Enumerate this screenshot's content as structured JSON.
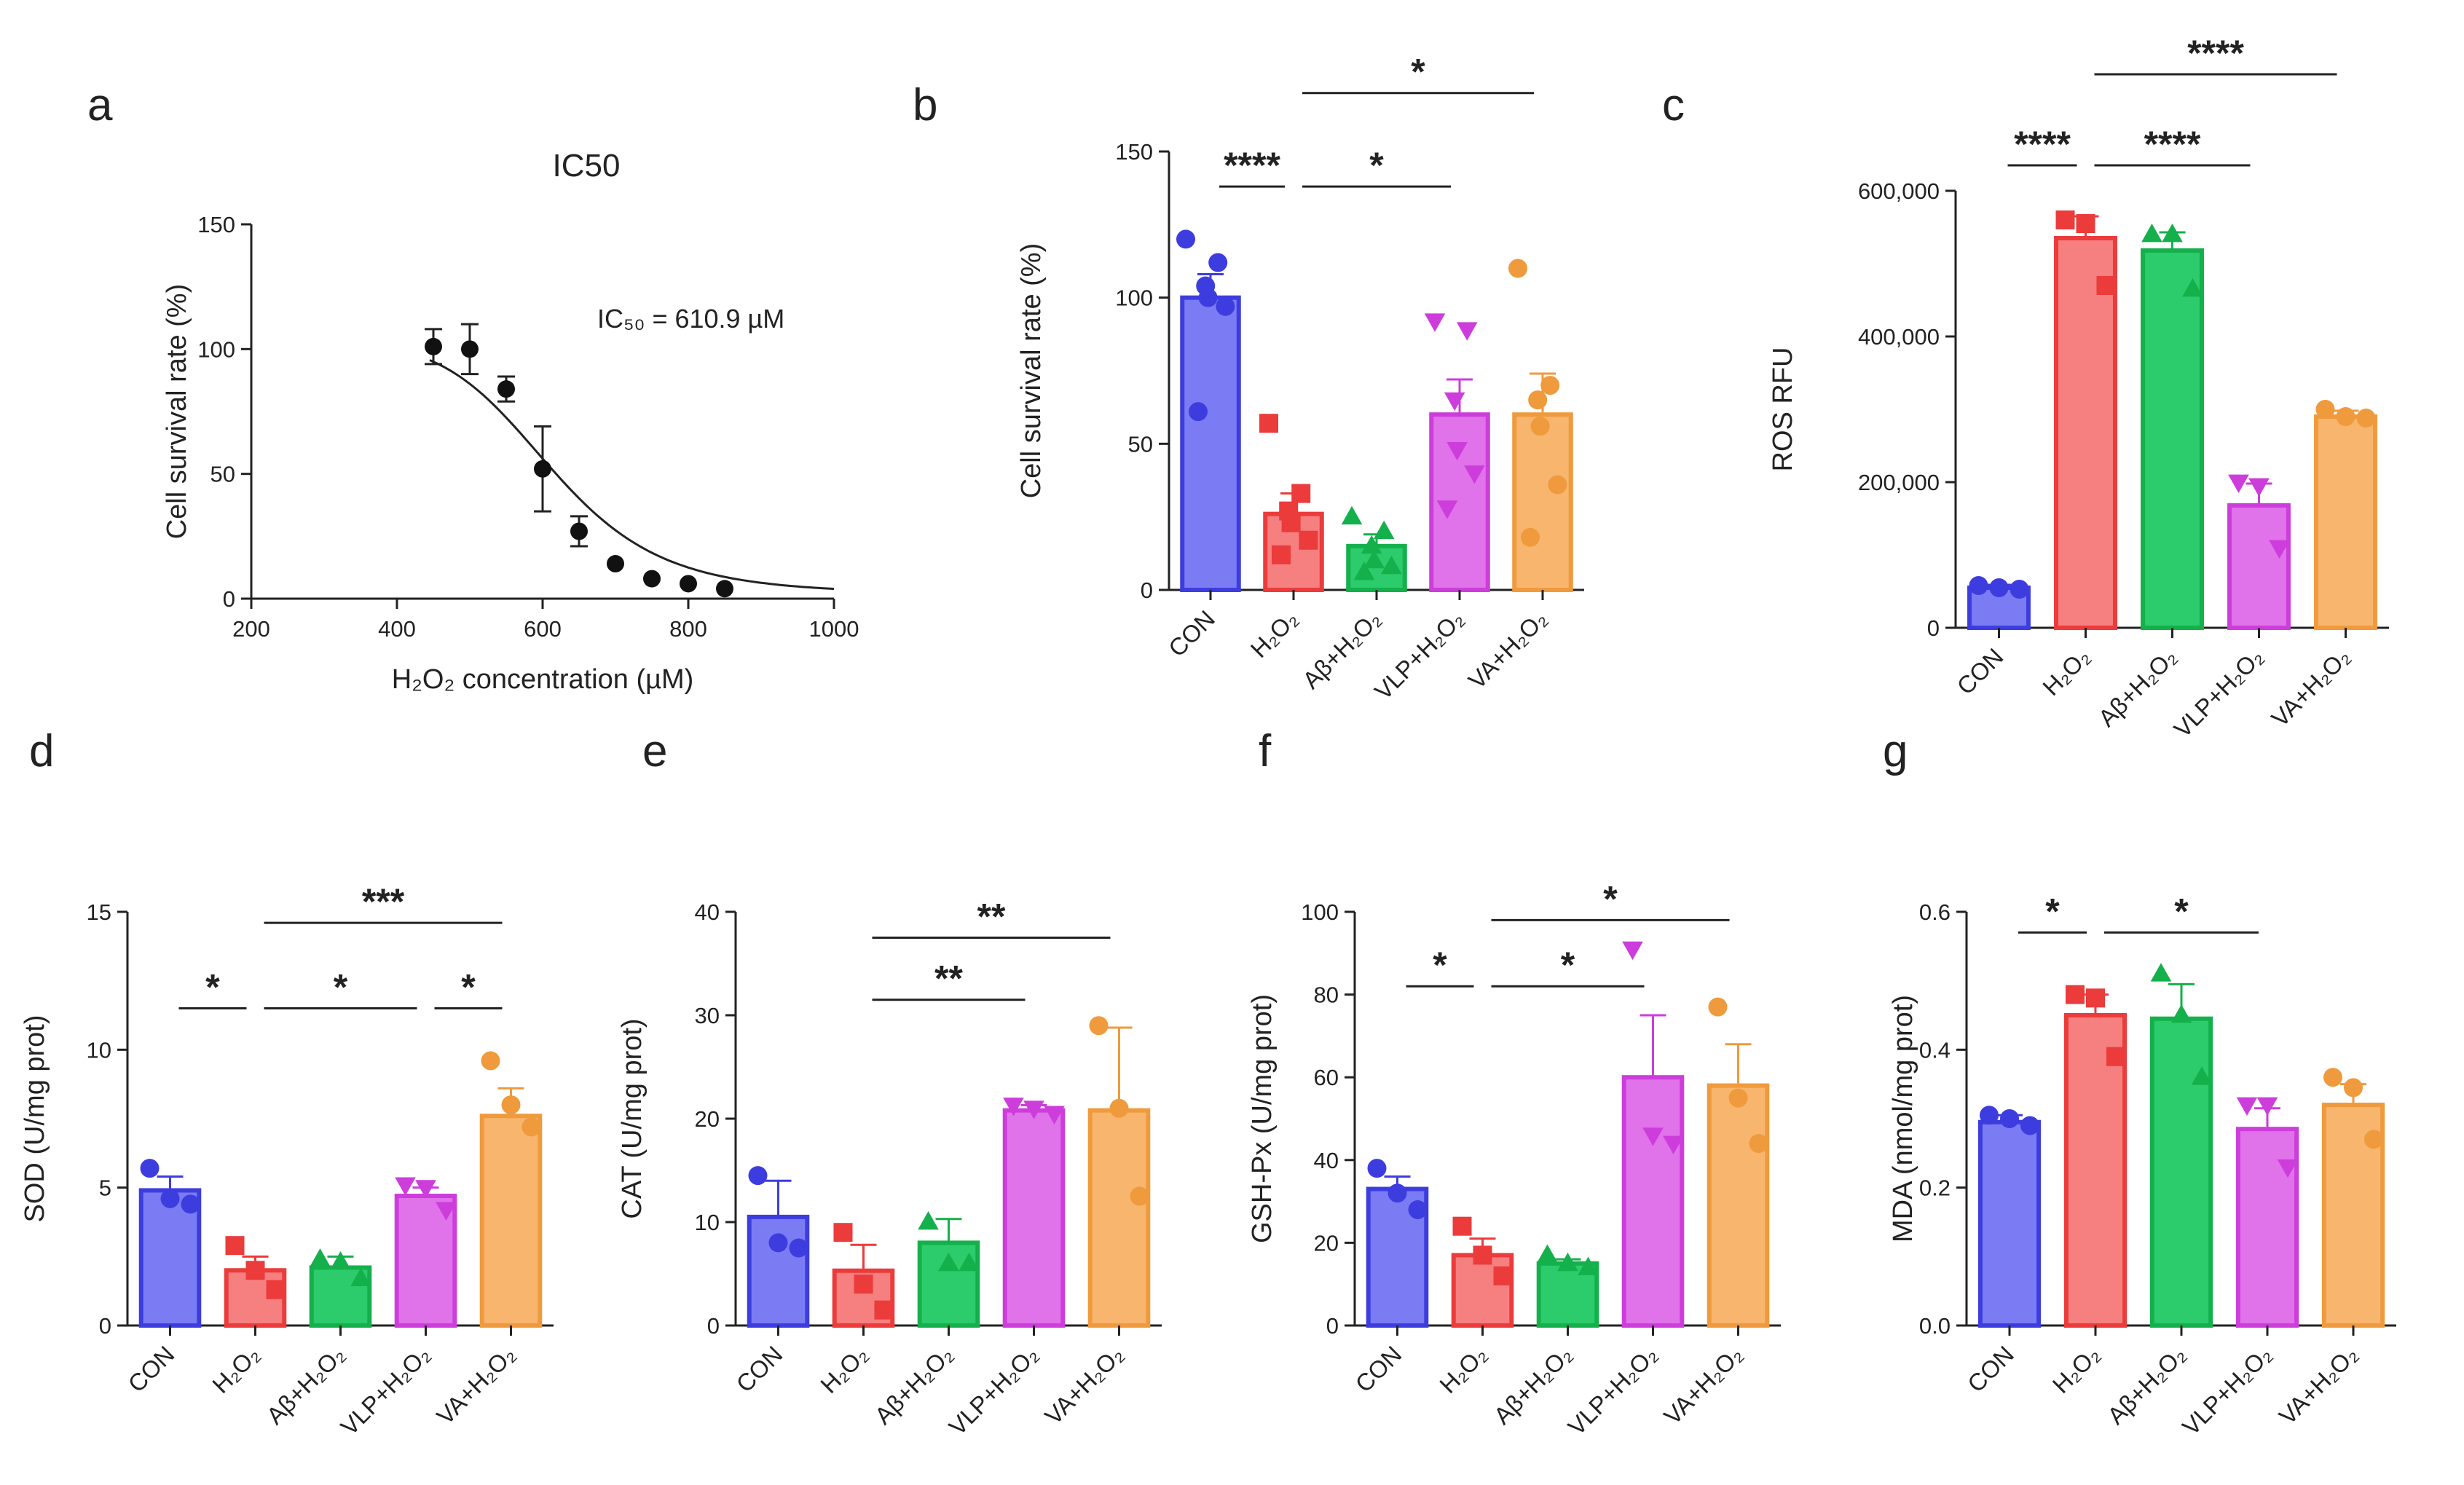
{
  "groups": [
    "CON",
    "H₂O₂",
    "Aβ+H₂O₂",
    "VLP+H₂O₂",
    "VA+H₂O₂"
  ],
  "colors": {
    "fills": [
      "#7b7bf4",
      "#f67f7f",
      "#2ccb6b",
      "#e072ea",
      "#f8b56e"
    ],
    "strokes": [
      "#3d3ddf",
      "#eb3b3b",
      "#14b04b",
      "#cd3ddb",
      "#ef9a3c"
    ]
  },
  "chart_data": [
    {
      "panel": "a",
      "type": "scatter",
      "title": "IC50",
      "xlabel": "H₂O₂ concentration (µM)",
      "ylabel": "Cell survival rate (%)",
      "xlim": [
        200,
        1000
      ],
      "ylim": [
        0,
        150
      ],
      "xticks": [
        200,
        400,
        600,
        800,
        1000
      ],
      "yticks": [
        0,
        50,
        100,
        150
      ],
      "ytick_labels": [
        "0",
        "50",
        "100",
        "150"
      ],
      "x": [
        450,
        500,
        550,
        600,
        650,
        700,
        750,
        800,
        850
      ],
      "y": [
        101,
        100,
        84,
        52,
        27,
        14,
        8,
        6,
        4
      ],
      "err": [
        7,
        10,
        5,
        17,
        6,
        0,
        0,
        0,
        0
      ],
      "fit_ic50": 610.9,
      "fit_top": 103,
      "fit_bottom": 2,
      "fit_hill": 8,
      "annotation": "IC₅₀ = 610.9 µM"
    },
    {
      "panel": "b",
      "type": "bar",
      "ylabel": "Cell survival rate (%)",
      "ylim": [
        0,
        150
      ],
      "yticks": [
        0,
        50,
        100,
        150
      ],
      "ytick_labels": [
        "0",
        "50",
        "100",
        "150"
      ],
      "values": [
        100,
        26,
        15,
        60,
        60
      ],
      "err": [
        8,
        7,
        4,
        12,
        14
      ],
      "points": [
        [
          120,
          112,
          104,
          100,
          97,
          61
        ],
        [
          57,
          33,
          27,
          23,
          17,
          12
        ],
        [
          25,
          20,
          15,
          10,
          8,
          6
        ],
        [
          92,
          89,
          65,
          48,
          40,
          28
        ],
        [
          110,
          70,
          65,
          56,
          36,
          18
        ]
      ],
      "sig": [
        {
          "from": 0,
          "to": 1,
          "label": "****",
          "y": 138
        },
        {
          "from": 1,
          "to": 3,
          "label": "*",
          "y": 138
        },
        {
          "from": 1,
          "to": 4,
          "label": "*",
          "y": 170
        }
      ]
    },
    {
      "panel": "c",
      "type": "bar",
      "ylabel": "ROS RFU",
      "ylim": [
        0,
        600000
      ],
      "yticks": [
        0,
        200000,
        400000,
        600000
      ],
      "ytick_labels": [
        "0",
        "200,000",
        "400,000",
        "600,000"
      ],
      "values": [
        55000,
        535000,
        518000,
        168000,
        290000
      ],
      "err": [
        4000,
        30000,
        25000,
        30000,
        8000
      ],
      "points": [
        [
          58000,
          55000,
          53000
        ],
        [
          560000,
          555000,
          470000
        ],
        [
          540000,
          540000,
          465000
        ],
        [
          200000,
          195000,
          110000
        ],
        [
          300000,
          290000,
          288000
        ]
      ],
      "sig": [
        {
          "from": 0,
          "to": 1,
          "label": "****",
          "y": 635000
        },
        {
          "from": 1,
          "to": 3,
          "label": "****",
          "y": 635000
        },
        {
          "from": 1,
          "to": 4,
          "label": "****",
          "y": 760000
        }
      ]
    },
    {
      "panel": "d",
      "type": "bar",
      "ylabel": "SOD (U/mg prot)",
      "ylim": [
        0,
        15
      ],
      "yticks": [
        0,
        5,
        10,
        15
      ],
      "ytick_labels": [
        "0",
        "5",
        "10",
        "15"
      ],
      "values": [
        4.9,
        2.0,
        2.1,
        4.7,
        7.6
      ],
      "err": [
        0.5,
        0.5,
        0.4,
        0.3,
        1.0
      ],
      "points": [
        [
          5.7,
          4.6,
          4.4
        ],
        [
          2.9,
          2.0,
          1.3
        ],
        [
          2.4,
          2.3,
          1.7
        ],
        [
          5.1,
          5.0,
          4.2
        ],
        [
          9.6,
          8.0,
          7.2
        ]
      ],
      "sig": [
        {
          "from": 0,
          "to": 1,
          "label": "*",
          "y": 11.5
        },
        {
          "from": 1,
          "to": 3,
          "label": "*",
          "y": 11.5
        },
        {
          "from": 3,
          "to": 4,
          "label": "*",
          "y": 11.5
        },
        {
          "from": 1,
          "to": 4,
          "label": "***",
          "y": 14.6
        }
      ]
    },
    {
      "panel": "e",
      "type": "bar",
      "ylabel": "CAT (U/mg prot)",
      "ylim": [
        0,
        40
      ],
      "yticks": [
        0,
        10,
        20,
        30,
        40
      ],
      "ytick_labels": [
        "0",
        "10",
        "20",
        "30",
        "40"
      ],
      "values": [
        10.5,
        5.3,
        8.0,
        20.8,
        20.8
      ],
      "err": [
        3.5,
        2.5,
        2.3,
        0.5,
        8.0
      ],
      "points": [
        [
          14.5,
          8.0,
          7.5
        ],
        [
          9.0,
          4.0,
          1.5
        ],
        [
          10.0,
          6.0,
          6.0
        ],
        [
          21.3,
          21.0,
          20.5
        ],
        [
          29.0,
          21.0,
          12.5
        ]
      ],
      "sig": [
        {
          "from": 1,
          "to": 3,
          "label": "**",
          "y": 31.5
        },
        {
          "from": 1,
          "to": 4,
          "label": "**",
          "y": 37.5
        }
      ]
    },
    {
      "panel": "f",
      "type": "bar",
      "ylabel": "GSH-Px (U/mg prot)",
      "ylim": [
        0,
        100
      ],
      "yticks": [
        0,
        20,
        40,
        60,
        80,
        100
      ],
      "ytick_labels": [
        "0",
        "20",
        "40",
        "60",
        "80",
        "100"
      ],
      "values": [
        33,
        17,
        15,
        60,
        58
      ],
      "err": [
        3,
        4,
        1,
        15,
        10
      ],
      "points": [
        [
          38,
          32,
          28
        ],
        [
          24,
          17,
          12
        ],
        [
          17,
          15,
          14
        ],
        [
          91,
          46,
          44
        ],
        [
          77,
          55,
          44
        ]
      ],
      "sig": [
        {
          "from": 0,
          "to": 1,
          "label": "*",
          "y": 82
        },
        {
          "from": 1,
          "to": 3,
          "label": "*",
          "y": 82
        },
        {
          "from": 1,
          "to": 4,
          "label": "*",
          "y": 98
        }
      ]
    },
    {
      "panel": "g",
      "type": "bar",
      "ylabel": "MDA (nmol/mg prot)",
      "ylim": [
        0,
        0.6
      ],
      "yticks": [
        0,
        0.2,
        0.4,
        0.6
      ],
      "ytick_labels": [
        "0.0",
        "0.2",
        "0.4",
        "0.6"
      ],
      "values": [
        0.295,
        0.45,
        0.445,
        0.285,
        0.32
      ],
      "err": [
        0.01,
        0.03,
        0.05,
        0.03,
        0.03
      ],
      "points": [
        [
          0.305,
          0.3,
          0.29
        ],
        [
          0.48,
          0.475,
          0.39
        ],
        [
          0.51,
          0.45,
          0.36
        ],
        [
          0.32,
          0.32,
          0.23
        ],
        [
          0.36,
          0.345,
          0.27
        ]
      ],
      "sig": [
        {
          "from": 0,
          "to": 1,
          "label": "*",
          "y": 0.57
        },
        {
          "from": 1,
          "to": 3,
          "label": "*",
          "y": 0.57
        }
      ]
    }
  ]
}
